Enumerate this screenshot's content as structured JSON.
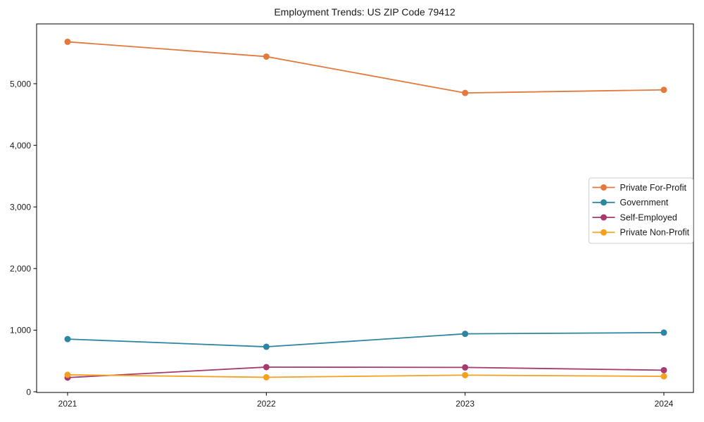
{
  "figure": {
    "background": "#ffffff",
    "spine_color": "#000000",
    "text_color": "#1a1a1a",
    "legend_border_color": "#cccccc"
  },
  "chart_data": {
    "type": "line",
    "title": "Employment Trends: US ZIP Code 79412",
    "xlabel": "",
    "ylabel": "",
    "x_categories": [
      "2021",
      "2022",
      "2023",
      "2024"
    ],
    "series": [
      {
        "name": "Private For-Profit",
        "color": "#E2793E",
        "values": [
          5680,
          5440,
          4850,
          4900
        ]
      },
      {
        "name": "Government",
        "color": "#2E85A1",
        "values": [
          855,
          730,
          940,
          960
        ]
      },
      {
        "name": "Self-Employed",
        "color": "#A63A6F",
        "values": [
          230,
          400,
          395,
          350
        ]
      },
      {
        "name": "Private Non-Profit",
        "color": "#F5A01E",
        "values": [
          275,
          235,
          270,
          250
        ]
      }
    ],
    "ylim": [
      0,
      5970
    ],
    "ytick_values": [
      0,
      1000,
      2000,
      3000,
      4000,
      5000
    ],
    "ytick_labels": [
      "0",
      "1,000",
      "2,000",
      "3,000",
      "4,000",
      "5,000"
    ],
    "grid": false,
    "legend_position": "center right",
    "marker": "circle"
  }
}
